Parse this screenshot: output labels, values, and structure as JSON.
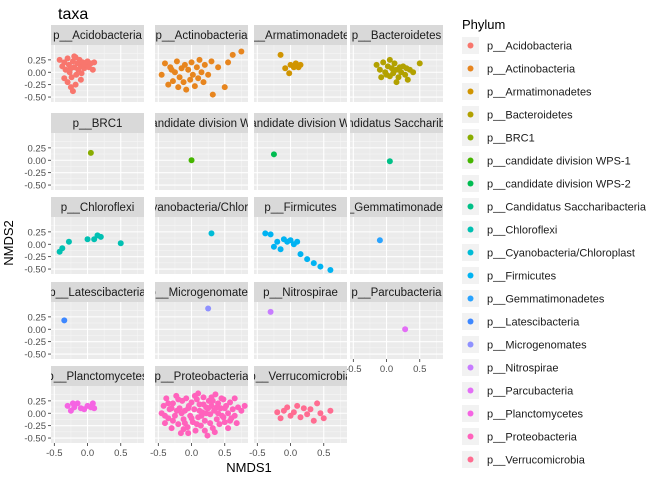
{
  "chart_data": {
    "type": "scatter",
    "title": "taxa",
    "xlabel": "NMDS1",
    "ylabel": "NMDS2",
    "xlim": [
      -0.55,
      0.85
    ],
    "ylim": [
      -0.6,
      0.55
    ],
    "x_ticks": [
      "-0.5",
      "0.0",
      "0.5"
    ],
    "x_tick_values": [
      -0.5,
      0.0,
      0.5
    ],
    "y_ticks": [
      "0.25",
      "0.00",
      "-0.25",
      "-0.50"
    ],
    "y_tick_values": [
      0.25,
      0.0,
      -0.25,
      -0.5
    ],
    "grid": true,
    "legend_title": "Phylum",
    "legend_position": "right",
    "facets": [
      {
        "name": "p__Acidobacteria",
        "color": "#F8766D",
        "points": [
          [
            -0.42,
            0.25
          ],
          [
            -0.38,
            0.12
          ],
          [
            -0.35,
            0.2
          ],
          [
            -0.33,
            0.05
          ],
          [
            -0.3,
            0.28
          ],
          [
            -0.28,
            0.15
          ],
          [
            -0.27,
            0.0
          ],
          [
            -0.25,
            0.08
          ],
          [
            -0.24,
            -0.1
          ],
          [
            -0.22,
            0.22
          ],
          [
            -0.2,
            0.1
          ],
          [
            -0.18,
            0.3
          ],
          [
            -0.17,
            -0.05
          ],
          [
            -0.15,
            0.18
          ],
          [
            -0.14,
            0.05
          ],
          [
            -0.12,
            0.25
          ],
          [
            -0.1,
            0.12
          ],
          [
            -0.09,
            -0.02
          ],
          [
            -0.07,
            0.2
          ],
          [
            -0.05,
            0.08
          ],
          [
            -0.03,
            0.15
          ],
          [
            0.0,
            0.22
          ],
          [
            0.02,
            0.1
          ],
          [
            0.05,
            0.18
          ],
          [
            0.08,
            0.05
          ],
          [
            -0.3,
            -0.2
          ],
          [
            -0.25,
            -0.3
          ],
          [
            -0.22,
            -0.38
          ],
          [
            -0.18,
            -0.25
          ],
          [
            -0.35,
            -0.12
          ],
          [
            -0.1,
            -0.15
          ],
          [
            -0.2,
            0.32
          ],
          [
            0.1,
            0.2
          ]
        ]
      },
      {
        "name": "p__Actinobacteria",
        "color": "#E7851E",
        "points": [
          [
            -0.45,
            -0.05
          ],
          [
            -0.4,
            0.18
          ],
          [
            -0.35,
            -0.25
          ],
          [
            -0.32,
            0.1
          ],
          [
            -0.28,
            -0.18
          ],
          [
            -0.25,
            0.0
          ],
          [
            -0.22,
            0.22
          ],
          [
            -0.2,
            -0.3
          ],
          [
            -0.18,
            -0.1
          ],
          [
            -0.15,
            0.08
          ],
          [
            -0.12,
            -0.2
          ],
          [
            -0.1,
            0.15
          ],
          [
            -0.08,
            -0.35
          ],
          [
            -0.05,
            0.05
          ],
          [
            -0.02,
            -0.15
          ],
          [
            0.0,
            0.2
          ],
          [
            0.02,
            -0.05
          ],
          [
            0.05,
            -0.28
          ],
          [
            0.08,
            0.1
          ],
          [
            0.1,
            -0.12
          ],
          [
            0.12,
            0.25
          ],
          [
            0.15,
            0.0
          ],
          [
            0.18,
            -0.2
          ],
          [
            0.2,
            0.15
          ],
          [
            0.25,
            -0.05
          ],
          [
            0.3,
            0.22
          ],
          [
            0.32,
            -0.45
          ],
          [
            0.4,
            0.1
          ],
          [
            0.5,
            -0.3
          ],
          [
            0.55,
            0.2
          ],
          [
            0.62,
            0.35
          ],
          [
            0.75,
            0.42
          ],
          [
            -0.3,
            0.05
          ]
        ]
      },
      {
        "name": "p__Armatimonadetes",
        "color": "#D09400",
        "points": [
          [
            -0.15,
            0.35
          ],
          [
            -0.08,
            0.08
          ],
          [
            -0.02,
            -0.02
          ],
          [
            0.0,
            0.15
          ],
          [
            0.05,
            0.1
          ],
          [
            0.08,
            0.18
          ],
          [
            0.12,
            0.1
          ],
          [
            0.15,
            0.15
          ]
        ]
      },
      {
        "name": "p__Bacteroidetes",
        "color": "#B2A100",
        "points": [
          [
            -0.15,
            0.15
          ],
          [
            -0.1,
            0.05
          ],
          [
            -0.08,
            -0.1
          ],
          [
            -0.05,
            0.2
          ],
          [
            -0.02,
            0.0
          ],
          [
            0.0,
            -0.05
          ],
          [
            0.02,
            0.12
          ],
          [
            0.05,
            -0.08
          ],
          [
            0.08,
            0.08
          ],
          [
            0.1,
            -0.02
          ],
          [
            0.12,
            0.18
          ],
          [
            0.15,
            0.05
          ],
          [
            0.18,
            -0.1
          ],
          [
            0.2,
            0.1
          ],
          [
            0.22,
            0.0
          ],
          [
            0.25,
            0.12
          ],
          [
            0.28,
            -0.05
          ],
          [
            0.3,
            0.08
          ],
          [
            0.32,
            -0.15
          ],
          [
            0.35,
            0.05
          ],
          [
            0.05,
            0.25
          ],
          [
            0.15,
            -0.2
          ],
          [
            0.4,
            0.0
          ],
          [
            0.5,
            0.18
          ]
        ]
      },
      {
        "name": "p__BRC1",
        "color": "#89AC00",
        "points": [
          [
            0.05,
            0.15
          ]
        ]
      },
      {
        "name": "p__candidate division WPS-1",
        "color": "#45B500",
        "points": [
          [
            0.0,
            0.0
          ]
        ]
      },
      {
        "name": "p__candidate division WPS-2",
        "color": "#00BC51",
        "points": [
          [
            -0.25,
            0.12
          ]
        ]
      },
      {
        "name": "p__Candidatus Saccharibacteria",
        "color": "#00C087",
        "points": [
          [
            0.05,
            -0.02
          ]
        ]
      },
      {
        "name": "p__Chloroflexi",
        "color": "#00C0B2",
        "points": [
          [
            -0.42,
            -0.15
          ],
          [
            -0.38,
            -0.08
          ],
          [
            -0.28,
            0.05
          ],
          [
            0.0,
            0.1
          ],
          [
            0.15,
            0.18
          ],
          [
            0.2,
            0.15
          ],
          [
            0.1,
            0.1
          ],
          [
            0.5,
            0.02
          ]
        ]
      },
      {
        "name": "p__Cyanobacteria/Chloroplast",
        "color": "#00BCD6",
        "points": [
          [
            0.3,
            0.22
          ]
        ]
      },
      {
        "name": "p__Firmicutes",
        "color": "#00B3F2",
        "points": [
          [
            -0.38,
            0.22
          ],
          [
            -0.3,
            0.2
          ],
          [
            -0.25,
            -0.05
          ],
          [
            -0.2,
            0.05
          ],
          [
            -0.15,
            -0.1
          ],
          [
            -0.1,
            0.1
          ],
          [
            -0.05,
            0.05
          ],
          [
            0.0,
            0.08
          ],
          [
            0.05,
            0.0
          ],
          [
            0.15,
            -0.2
          ],
          [
            0.25,
            -0.3
          ],
          [
            0.35,
            -0.38
          ],
          [
            0.45,
            -0.45
          ],
          [
            0.6,
            -0.52
          ],
          [
            0.1,
            0.05
          ]
        ]
      },
      {
        "name": "p__Gemmatimonadetes",
        "color": "#29A3FF",
        "points": [
          [
            -0.1,
            0.08
          ]
        ]
      },
      {
        "name": "p__Latescibacteria",
        "color": "#3D87FF",
        "points": [
          [
            -0.35,
            0.18
          ]
        ]
      },
      {
        "name": "p__Microgenomates",
        "color": "#8F91FF",
        "points": [
          [
            0.25,
            0.42
          ]
        ]
      },
      {
        "name": "p__Nitrospirae",
        "color": "#C77CFF",
        "points": [
          [
            -0.3,
            0.35
          ]
        ]
      },
      {
        "name": "p__Parcubacteria",
        "color": "#E36EF6",
        "points": [
          [
            0.28,
            0.0
          ]
        ]
      },
      {
        "name": "p__Planctomycetes",
        "color": "#F564E3",
        "points": [
          [
            -0.3,
            0.15
          ],
          [
            -0.25,
            0.05
          ],
          [
            -0.2,
            0.12
          ],
          [
            -0.15,
            0.2
          ],
          [
            -0.1,
            0.1
          ],
          [
            -0.05,
            0.08
          ],
          [
            0.0,
            0.15
          ],
          [
            0.05,
            0.12
          ],
          [
            0.08,
            0.2
          ],
          [
            0.1,
            0.1
          ],
          [
            -0.22,
            0.2
          ]
        ]
      },
      {
        "name": "p__Proteobacteria",
        "color": "#FF62BC",
        "points": [
          [
            -0.45,
            0.0
          ],
          [
            -0.42,
            0.15
          ],
          [
            -0.4,
            -0.2
          ],
          [
            -0.38,
            0.3
          ],
          [
            -0.35,
            -0.1
          ],
          [
            -0.33,
            0.08
          ],
          [
            -0.3,
            -0.3
          ],
          [
            -0.28,
            0.2
          ],
          [
            -0.25,
            -0.05
          ],
          [
            -0.23,
            0.35
          ],
          [
            -0.2,
            -0.22
          ],
          [
            -0.18,
            0.1
          ],
          [
            -0.16,
            -0.4
          ],
          [
            -0.14,
            0.25
          ],
          [
            -0.12,
            -0.12
          ],
          [
            -0.1,
            0.05
          ],
          [
            -0.08,
            0.3
          ],
          [
            -0.06,
            -0.28
          ],
          [
            -0.04,
            0.15
          ],
          [
            -0.02,
            -0.05
          ],
          [
            0.0,
            0.22
          ],
          [
            0.02,
            -0.18
          ],
          [
            0.04,
            0.08
          ],
          [
            0.06,
            -0.35
          ],
          [
            0.08,
            0.28
          ],
          [
            0.1,
            -0.08
          ],
          [
            0.12,
            0.18
          ],
          [
            0.14,
            -0.25
          ],
          [
            0.16,
            0.02
          ],
          [
            0.18,
            0.32
          ],
          [
            0.2,
            -0.15
          ],
          [
            0.22,
            0.12
          ],
          [
            0.24,
            -0.45
          ],
          [
            0.26,
            0.25
          ],
          [
            0.28,
            -0.02
          ],
          [
            0.3,
            0.15
          ],
          [
            0.32,
            -0.3
          ],
          [
            0.34,
            0.05
          ],
          [
            0.36,
            0.38
          ],
          [
            0.38,
            -0.12
          ],
          [
            0.4,
            0.2
          ],
          [
            0.42,
            -0.22
          ],
          [
            0.44,
            0.1
          ],
          [
            0.46,
            -0.05
          ],
          [
            0.48,
            0.28
          ],
          [
            0.5,
            -0.18
          ],
          [
            0.52,
            0.15
          ],
          [
            0.55,
            0.0
          ],
          [
            0.58,
            0.22
          ],
          [
            0.6,
            -0.1
          ],
          [
            0.62,
            0.08
          ],
          [
            0.65,
            0.3
          ],
          [
            0.68,
            -0.2
          ],
          [
            0.7,
            0.12
          ],
          [
            0.75,
            0.05
          ],
          [
            0.8,
            0.15
          ],
          [
            -0.35,
            0.2
          ],
          [
            -0.28,
            -0.15
          ],
          [
            -0.2,
            0.28
          ],
          [
            -0.12,
            -0.32
          ],
          [
            -0.05,
            0.1
          ],
          [
            0.05,
            0.35
          ],
          [
            0.15,
            -0.05
          ],
          [
            0.25,
            0.1
          ],
          [
            0.35,
            -0.38
          ],
          [
            0.45,
            0.3
          ],
          [
            0.55,
            -0.3
          ],
          [
            0.65,
            -0.05
          ],
          [
            -0.15,
            0.0
          ],
          [
            -0.3,
            0.1
          ],
          [
            0.0,
            -0.1
          ],
          [
            0.1,
            0.4
          ],
          [
            0.2,
            -0.35
          ],
          [
            0.3,
            0.32
          ],
          [
            0.4,
            0.0
          ],
          [
            0.5,
            0.1
          ],
          [
            -0.4,
            -0.05
          ],
          [
            -0.1,
            -0.2
          ],
          [
            0.08,
            -0.22
          ],
          [
            0.18,
            0.18
          ],
          [
            0.28,
            -0.2
          ],
          [
            0.38,
            0.12
          ],
          [
            0.48,
            -0.08
          ],
          [
            0.58,
            -0.15
          ],
          [
            -0.22,
            0.05
          ],
          [
            -0.05,
            -0.4
          ],
          [
            0.12,
            0.05
          ],
          [
            0.22,
            0.0
          ],
          [
            0.32,
            0.25
          ]
        ]
      },
      {
        "name": "p__Verrucomicrobia",
        "color": "#FF6C91",
        "points": [
          [
            -0.15,
            -0.1
          ],
          [
            -0.1,
            0.05
          ],
          [
            -0.05,
            0.12
          ],
          [
            0.0,
            -0.05
          ],
          [
            0.05,
            0.02
          ],
          [
            0.1,
            0.15
          ],
          [
            0.15,
            -0.08
          ],
          [
            0.2,
            0.1
          ],
          [
            0.25,
            -0.02
          ],
          [
            0.3,
            0.08
          ],
          [
            0.35,
            -0.15
          ],
          [
            0.4,
            0.2
          ],
          [
            0.45,
            0.0
          ],
          [
            0.5,
            -0.1
          ],
          [
            0.6,
            0.05
          ],
          [
            -0.2,
            0.02
          ]
        ]
      }
    ]
  }
}
